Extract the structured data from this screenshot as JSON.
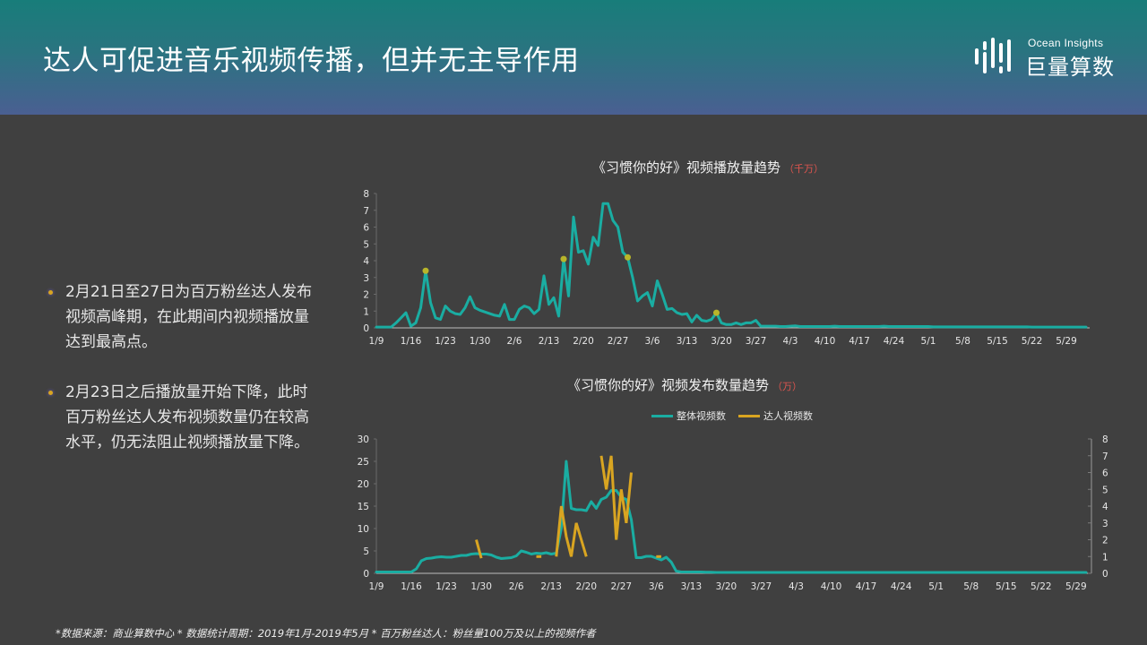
{
  "header": {
    "title": "达人可促进音乐视频传播，但并无主导作用",
    "logo": {
      "en": "Ocean Insights",
      "cn": "巨量算数",
      "icon": "bars-logo-icon"
    }
  },
  "bullets": [
    {
      "text": "2月21日至27日为百万粉丝达人发布视频高峰期，在此期间内视频播放量达到最高点。"
    },
    {
      "text": "2月23日之后播放量开始下降，此时百万粉丝达人发布视频数量仍在较高水平，仍无法阻止视频播放量下降。"
    }
  ],
  "colors": {
    "teal": "#1aada2",
    "gold": "#d9a521",
    "marker": "#b8b52a",
    "unit_red": "#e0554f"
  },
  "footnote": "*数据来源：商业算数中心 * 数据统计周期：2019年1月-2019年5月 * 百万粉丝达人：粉丝量100万及以上的视频作者",
  "chart_data": [
    {
      "type": "line",
      "title": "《习惯你的好》视频播放量趋势",
      "unit": "（千万）",
      "xlabel": "",
      "ylabel": "",
      "ylim": [
        0,
        8
      ],
      "yticks": [
        "0",
        "1",
        "2",
        "3",
        "4",
        "5",
        "6",
        "7",
        "8"
      ],
      "x_ticks": [
        "1/9",
        "1/16",
        "1/23",
        "1/30",
        "2/6",
        "2/13",
        "2/20",
        "2/27",
        "3/6",
        "3/13",
        "3/20",
        "3/27",
        "4/3",
        "4/10",
        "4/17",
        "4/24",
        "5/1",
        "5/8",
        "5/15",
        "5/22",
        "5/29"
      ],
      "x_start": "1/9",
      "x_end": "5/31",
      "grid": false,
      "series": [
        {
          "name": "视频播放量",
          "color": "#1aada2",
          "values": [
            0.05,
            0.05,
            0.05,
            0.05,
            0.3,
            0.6,
            0.9,
            0.1,
            0.3,
            1.2,
            3.4,
            1.5,
            0.6,
            0.5,
            1.3,
            1.0,
            0.85,
            0.8,
            1.2,
            1.85,
            1.2,
            1.05,
            0.95,
            0.85,
            0.75,
            0.7,
            1.4,
            0.5,
            0.5,
            1.1,
            1.3,
            1.2,
            0.85,
            1.1,
            3.1,
            1.4,
            1.8,
            0.7,
            4.1,
            1.9,
            6.6,
            4.5,
            4.6,
            3.8,
            5.4,
            4.9,
            7.4,
            7.4,
            6.4,
            6.0,
            4.5,
            4.2,
            3.0,
            1.6,
            1.9,
            2.1,
            1.3,
            2.8,
            2.0,
            1.1,
            1.15,
            0.9,
            0.8,
            0.85,
            0.35,
            0.75,
            0.45,
            0.4,
            0.5,
            0.9,
            0.3,
            0.2,
            0.2,
            0.3,
            0.2,
            0.3,
            0.3,
            0.45,
            0.1,
            0.1,
            0.1,
            0.1,
            0.08,
            0.08,
            0.1,
            0.12,
            0.08,
            0.08,
            0.08,
            0.08,
            0.08,
            0.08,
            0.08,
            0.1,
            0.08,
            0.08,
            0.08,
            0.08,
            0.08,
            0.08,
            0.08,
            0.08,
            0.08,
            0.1,
            0.08,
            0.08,
            0.08,
            0.08,
            0.08,
            0.08,
            0.08,
            0.08,
            0.08,
            0.06,
            0.06,
            0.06,
            0.06,
            0.06,
            0.06,
            0.06,
            0.06,
            0.06,
            0.06,
            0.06,
            0.06,
            0.06,
            0.06,
            0.06,
            0.06,
            0.06,
            0.06,
            0.06,
            0.06,
            0.05,
            0.05,
            0.05,
            0.05,
            0.05,
            0.05,
            0.05,
            0.05,
            0.05,
            0.05,
            0.05,
            0.05
          ]
        }
      ],
      "markers": [
        {
          "label": "1/19",
          "index": 10,
          "value": 3.4
        },
        {
          "label": "2/15",
          "index": 38,
          "value": 4.1
        },
        {
          "label": "2/25",
          "index": 51,
          "value": 4.2
        },
        {
          "label": "3/19",
          "index": 69,
          "value": 0.9
        }
      ]
    },
    {
      "type": "line",
      "title": "《习惯你的好》视频发布数量趋势",
      "unit": "（万）",
      "legend": [
        "整体视频数",
        "达人视频数"
      ],
      "legend_position": "top",
      "ylim_left": [
        0,
        30
      ],
      "yticks_left": [
        "0",
        "5",
        "10",
        "15",
        "20",
        "25",
        "30"
      ],
      "ylim_right": [
        0,
        8
      ],
      "yticks_right": [
        "0",
        "1",
        "2",
        "3",
        "4",
        "5",
        "6",
        "7",
        "8"
      ],
      "x_ticks": [
        "1/9",
        "1/16",
        "1/23",
        "1/30",
        "2/6",
        "2/13",
        "2/20",
        "2/27",
        "3/6",
        "3/13",
        "3/20",
        "3/27",
        "4/3",
        "4/10",
        "4/17",
        "4/24",
        "5/1",
        "5/8",
        "5/15",
        "5/22",
        "5/29"
      ],
      "grid": false,
      "series": [
        {
          "name": "整体视频数",
          "axis": "left",
          "color": "#1aada2",
          "values": [
            0.3,
            0.3,
            0.3,
            0.3,
            0.3,
            0.3,
            0.3,
            0.3,
            1.0,
            2.8,
            3.3,
            3.4,
            3.6,
            3.7,
            3.6,
            3.6,
            3.8,
            4.0,
            4.0,
            4.3,
            4.4,
            4.3,
            4.3,
            4.1,
            3.6,
            3.3,
            3.4,
            3.5,
            3.9,
            5.0,
            4.7,
            4.3,
            4.5,
            4.4,
            4.6,
            4.3,
            4.5,
            10.0,
            25.0,
            14.5,
            14.2,
            14.2,
            14.0,
            16.0,
            14.5,
            16.5,
            17.0,
            18.5,
            18.5,
            17.0,
            16.5,
            12.0,
            3.5,
            3.5,
            3.8,
            3.8,
            3.4,
            3.0,
            3.6,
            2.5,
            0.5,
            0.3,
            0.3,
            0.3,
            0.3,
            0.3,
            0.25,
            0.25,
            0.2,
            0.2,
            0.2,
            0.2,
            0.2,
            0.2,
            0.2,
            0.2,
            0.2,
            0.2,
            0.2,
            0.2,
            0.2,
            0.2,
            0.2,
            0.2,
            0.2,
            0.2,
            0.2,
            0.2,
            0.2,
            0.2,
            0.2,
            0.2,
            0.2,
            0.2,
            0.2,
            0.2,
            0.2,
            0.2,
            0.2,
            0.2,
            0.2,
            0.2,
            0.2,
            0.2,
            0.2,
            0.2,
            0.2,
            0.2,
            0.2,
            0.2,
            0.2,
            0.2,
            0.2,
            0.2,
            0.2,
            0.2,
            0.2,
            0.2,
            0.2,
            0.2,
            0.2,
            0.2,
            0.2,
            0.2,
            0.2,
            0.2,
            0.2,
            0.2,
            0.2,
            0.2,
            0.2,
            0.2,
            0.2,
            0.2,
            0.2,
            0.2,
            0.2,
            0.2,
            0.2,
            0.2,
            0.2,
            0.2,
            0.2
          ]
        },
        {
          "name": "达人视频数",
          "axis": "right",
          "color": "#d9a521",
          "segments": [
            {
              "start_index": 20,
              "values": [
                2.0,
                0.9
              ]
            },
            {
              "start_index": 32,
              "values": [
                1.0,
                1.0
              ]
            },
            {
              "start_index": 36,
              "values": [
                1.0,
                4.0,
                2.2,
                1.0,
                3.0,
                2.0,
                1.0
              ]
            },
            {
              "start_index": 45,
              "values": [
                7.0,
                5.0,
                7.0,
                2.0,
                5.0,
                3.0,
                6.0
              ]
            },
            {
              "start_index": 56,
              "values": [
                1.0,
                1.0
              ]
            }
          ]
        }
      ]
    }
  ]
}
